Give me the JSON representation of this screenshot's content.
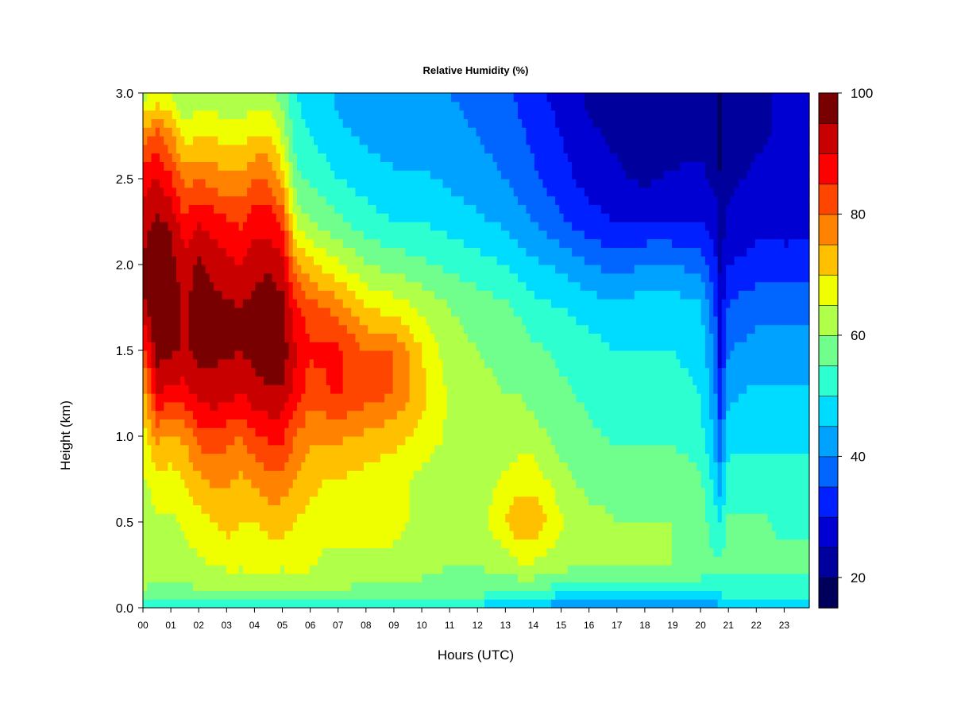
{
  "chart_data": {
    "type": "heatmap",
    "title": "Relative Humidity (%)",
    "xlabel": "Hours (UTC)",
    "ylabel": "Height (km)",
    "xlim": [
      0,
      23.9
    ],
    "ylim": [
      0,
      3.0
    ],
    "x_ticks": [
      "00",
      "01",
      "02",
      "03",
      "04",
      "05",
      "06",
      "07",
      "08",
      "09",
      "10",
      "11",
      "12",
      "13",
      "14",
      "15",
      "16",
      "17",
      "18",
      "19",
      "20",
      "21",
      "22",
      "23"
    ],
    "y_ticks": [
      "0.0",
      "0.5",
      "1.0",
      "1.5",
      "2.0",
      "2.5",
      "3.0"
    ],
    "colorbar": {
      "min": 15,
      "max": 100,
      "step": 5,
      "tick_labels": [
        "20",
        "40",
        "60",
        "80",
        "100"
      ],
      "tick_values": [
        20,
        40,
        60,
        80,
        100
      ],
      "colors": [
        "#00005a",
        "#00009c",
        "#0000d2",
        "#0020ff",
        "#0066ff",
        "#00a2ff",
        "#00dcff",
        "#2effd0",
        "#70ff8c",
        "#b0ff48",
        "#f0ff00",
        "#ffc000",
        "#ff8200",
        "#ff4600",
        "#ff0000",
        "#c80000",
        "#780000"
      ]
    },
    "x": [
      0,
      0.5,
      1,
      1.5,
      2,
      2.5,
      3,
      3.5,
      4,
      4.5,
      5,
      5.5,
      6,
      6.5,
      7,
      8,
      9,
      10,
      11,
      12,
      13,
      13.5,
      14,
      15,
      16,
      17,
      18,
      19,
      20,
      20.5,
      20.7,
      21,
      22,
      23,
      23.9
    ],
    "y": [
      0,
      0.1,
      0.25,
      0.5,
      0.75,
      1.0,
      1.25,
      1.5,
      1.75,
      2.0,
      2.25,
      2.5,
      2.75,
      3.0
    ],
    "z": [
      [
        48,
        60,
        62,
        62,
        64,
        68,
        72,
        82,
        94,
        96,
        93,
        88,
        78,
        62
      ],
      [
        48,
        58,
        62,
        64,
        68,
        76,
        90,
        98,
        99,
        99,
        96,
        90,
        82,
        66
      ],
      [
        48,
        58,
        62,
        64,
        68,
        74,
        88,
        96,
        98,
        97,
        94,
        86,
        76,
        64
      ],
      [
        48,
        58,
        63,
        66,
        70,
        76,
        88,
        94,
        94,
        92,
        86,
        78,
        68,
        60
      ],
      [
        48,
        60,
        64,
        68,
        74,
        82,
        92,
        97,
        98,
        96,
        90,
        80,
        70,
        62
      ],
      [
        48,
        60,
        65,
        70,
        76,
        84,
        93,
        96,
        96,
        94,
        88,
        78,
        70,
        62
      ],
      [
        48,
        60,
        66,
        72,
        76,
        82,
        92,
        96,
        96,
        92,
        86,
        76,
        68,
        60
      ],
      [
        48,
        60,
        66,
        70,
        74,
        80,
        90,
        95,
        95,
        90,
        84,
        76,
        68,
        60
      ],
      [
        48,
        60,
        66,
        70,
        76,
        84,
        93,
        97,
        97,
        93,
        88,
        80,
        70,
        62
      ],
      [
        48,
        60,
        66,
        72,
        78,
        86,
        94,
        98,
        98,
        94,
        88,
        80,
        70,
        62
      ],
      [
        48,
        60,
        66,
        72,
        78,
        86,
        94,
        98,
        97,
        92,
        84,
        72,
        64,
        58
      ],
      [
        48,
        60,
        66,
        70,
        74,
        80,
        88,
        90,
        86,
        76,
        64,
        56,
        52,
        50
      ],
      [
        48,
        60,
        66,
        68,
        72,
        76,
        82,
        86,
        82,
        72,
        60,
        54,
        50,
        48
      ],
      [
        48,
        60,
        64,
        66,
        70,
        76,
        84,
        86,
        80,
        68,
        58,
        52,
        48,
        46
      ],
      [
        48,
        60,
        64,
        66,
        70,
        76,
        86,
        86,
        78,
        66,
        56,
        50,
        46,
        44
      ],
      [
        48,
        58,
        64,
        66,
        68,
        74,
        82,
        80,
        70,
        60,
        52,
        48,
        44,
        42
      ],
      [
        48,
        58,
        64,
        66,
        66,
        72,
        80,
        80,
        68,
        58,
        50,
        46,
        42,
        40
      ],
      [
        48,
        58,
        62,
        64,
        64,
        68,
        72,
        70,
        64,
        56,
        50,
        46,
        42,
        40
      ],
      [
        48,
        58,
        60,
        62,
        62,
        64,
        64,
        62,
        60,
        54,
        48,
        44,
        42,
        40
      ],
      [
        48,
        58,
        60,
        62,
        62,
        62,
        62,
        60,
        58,
        52,
        46,
        42,
        40,
        38
      ],
      [
        46,
        56,
        62,
        70,
        66,
        62,
        60,
        58,
        56,
        50,
        44,
        40,
        38,
        36
      ],
      [
        46,
        56,
        64,
        74,
        68,
        62,
        60,
        58,
        54,
        48,
        42,
        38,
        36,
        34
      ],
      [
        46,
        56,
        64,
        74,
        68,
        62,
        58,
        56,
        52,
        46,
        40,
        36,
        34,
        32
      ],
      [
        40,
        52,
        62,
        66,
        62,
        58,
        56,
        54,
        50,
        44,
        36,
        32,
        30,
        28
      ],
      [
        38,
        52,
        60,
        62,
        58,
        56,
        54,
        52,
        48,
        40,
        32,
        28,
        26,
        24
      ],
      [
        38,
        52,
        60,
        60,
        58,
        54,
        52,
        50,
        46,
        38,
        30,
        26,
        24,
        22
      ],
      [
        38,
        52,
        60,
        60,
        58,
        54,
        52,
        50,
        48,
        40,
        30,
        24,
        20,
        22
      ],
      [
        38,
        52,
        60,
        60,
        58,
        54,
        52,
        50,
        48,
        40,
        30,
        26,
        22,
        24
      ],
      [
        38,
        52,
        58,
        58,
        56,
        52,
        50,
        48,
        46,
        38,
        30,
        26,
        24,
        24
      ],
      [
        42,
        50,
        56,
        52,
        48,
        44,
        42,
        40,
        36,
        32,
        28,
        24,
        22,
        22
      ],
      [
        44,
        52,
        56,
        50,
        42,
        36,
        32,
        28,
        26,
        24,
        22,
        20,
        18,
        20
      ],
      [
        44,
        52,
        56,
        56,
        52,
        48,
        44,
        40,
        36,
        30,
        26,
        24,
        22,
        24
      ],
      [
        46,
        52,
        56,
        56,
        52,
        48,
        46,
        42,
        38,
        32,
        28,
        26,
        24,
        24
      ],
      [
        46,
        52,
        56,
        54,
        52,
        48,
        46,
        42,
        38,
        32,
        28,
        26,
        26,
        26
      ],
      [
        48,
        52,
        56,
        54,
        52,
        48,
        46,
        42,
        38,
        32,
        28,
        26,
        26,
        26
      ]
    ]
  }
}
